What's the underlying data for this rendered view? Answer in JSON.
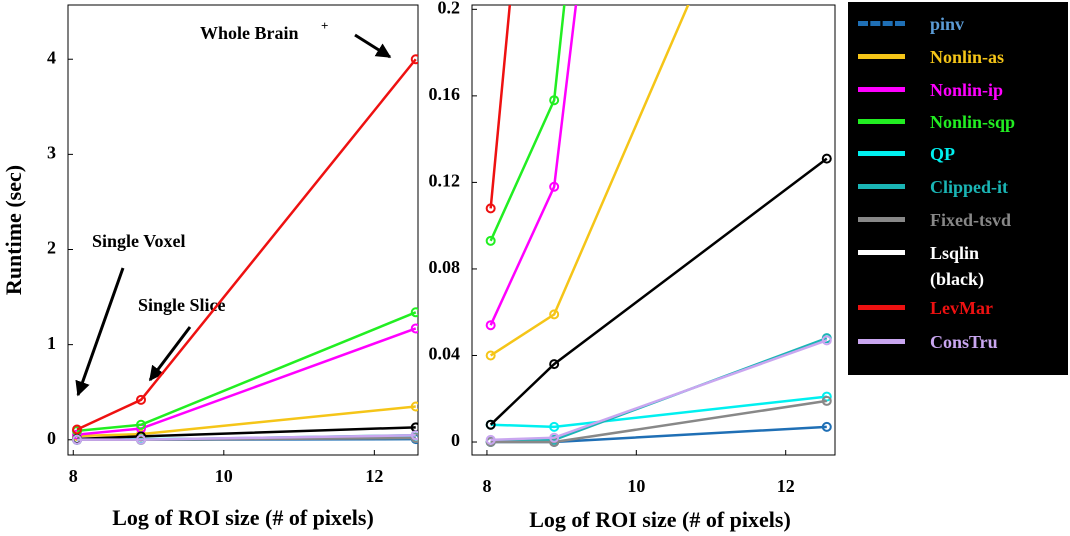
{
  "chart_data": {
    "type": "line",
    "x": [
      8.05,
      8.9,
      12.55
    ],
    "series": [
      {
        "name": "pinv",
        "color": "#1f6fb5",
        "text_color": "#5b9bd5",
        "legend_dash": true,
        "values": [
          0,
          0,
          0.007
        ]
      },
      {
        "name": "Nonlin-as",
        "color": "#f5c518",
        "values": [
          0.04,
          0.059,
          0.35
        ]
      },
      {
        "name": "Nonlin-ip",
        "color": "#ff00ff",
        "values": [
          0.054,
          0.118,
          1.17
        ]
      },
      {
        "name": "Nonlin-sqp",
        "color": "#22ee22",
        "values": [
          0.093,
          0.158,
          1.34
        ]
      },
      {
        "name": "QP",
        "color": "#00f0f0",
        "values": [
          0.008,
          0.007,
          0.021
        ]
      },
      {
        "name": "Clipped-it",
        "color": "#1ab5b5",
        "values": [
          0,
          0.001,
          0.048
        ]
      },
      {
        "name": "Fixed-tsvd",
        "color": "#888888",
        "values": [
          0,
          0,
          0.019
        ]
      },
      {
        "name": "Lsqlin\n(black)",
        "color": "#000000",
        "legend_color": "#ffffff",
        "values": [
          0.008,
          0.036,
          0.131
        ]
      },
      {
        "name": "LevMar",
        "color": "#ee1111",
        "values": [
          0.108,
          0.42,
          4.0
        ]
      },
      {
        "name": "ConsTru",
        "color": "#c9a6f0",
        "values": [
          0.001,
          0.002,
          0.047
        ]
      }
    ],
    "panels": [
      {
        "xlim": [
          7.93,
          12.58
        ],
        "ylim": [
          -0.16,
          4.57
        ],
        "xticks": [
          8,
          10,
          12
        ],
        "yticks": [
          0,
          1,
          2,
          3,
          4
        ],
        "xlabel": "Log of ROI size (# of pixels)",
        "ylabel": "Runtime (sec)",
        "annotations": [
          {
            "text": "Whole Brain",
            "superscript": "+"
          },
          {
            "text": "Single Voxel"
          },
          {
            "text": "Single Slice"
          }
        ]
      },
      {
        "xlim": [
          7.8,
          12.66
        ],
        "ylim": [
          -0.006,
          0.202
        ],
        "xticks": [
          8,
          10,
          12
        ],
        "yticks": [
          0,
          0.04,
          0.08,
          0.12,
          0.16,
          0.2
        ],
        "xlabel": "Log of ROI size (# of pixels)"
      }
    ]
  }
}
